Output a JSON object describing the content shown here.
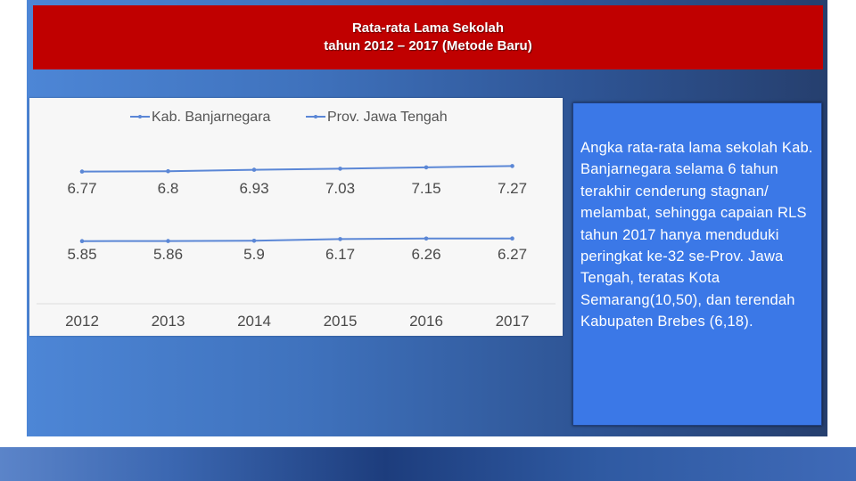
{
  "title": {
    "line1": "Rata-rata Lama Sekolah",
    "line2": "tahun 2012 – 2017 (Metode Baru)"
  },
  "description": "Angka rata-rata lama sekolah Kab. Banjarnegara selama 6 tahun terakhir cenderung stagnan/ melambat, sehingga capaian RLS tahun 2017 hanya menduduki peringkat ke-32 se-Prov. Jawa Tengah, teratas Kota Semarang(10,50), dan terendah Kabupaten Brebes (6,18).",
  "colors": {
    "title_bar": "#c00000",
    "series_line": "#5b87d6",
    "text_box": "#3b78e7"
  },
  "chart_data": {
    "type": "line",
    "categories": [
      "2012",
      "2013",
      "2014",
      "2015",
      "2016",
      "2017"
    ],
    "series": [
      {
        "name": "Kab. Banjarnegara",
        "values": [
          6.77,
          6.8,
          6.93,
          7.03,
          7.15,
          7.27
        ],
        "labels": [
          "6.77",
          "6.8",
          "6.93",
          "7.03",
          "7.15",
          "7.27"
        ]
      },
      {
        "name": "Prov. Jawa Tengah",
        "values": [
          5.85,
          5.86,
          5.9,
          6.17,
          6.26,
          6.27
        ],
        "labels": [
          "5.85",
          "5.86",
          "5.9",
          "6.17",
          "6.26",
          "6.27"
        ]
      }
    ],
    "legend_position": "top",
    "grid": false,
    "data_labels": "below"
  }
}
